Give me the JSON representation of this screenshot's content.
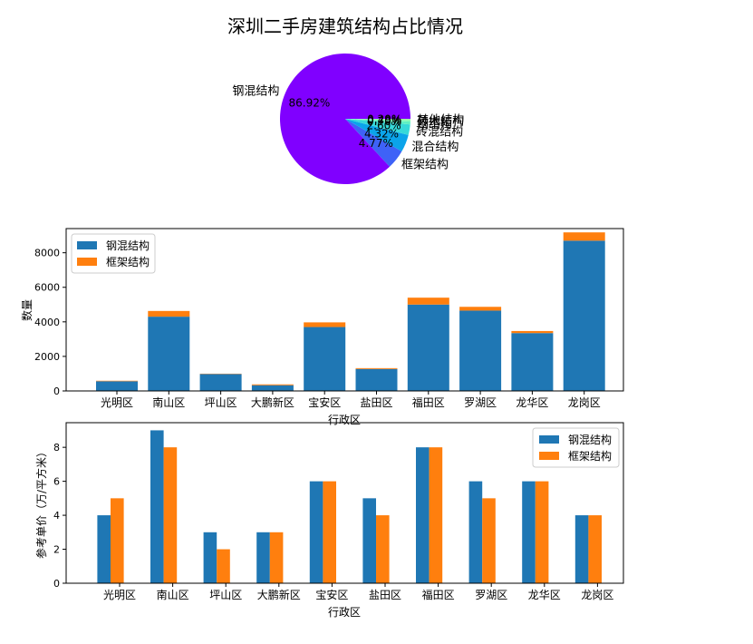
{
  "chart_data": [
    {
      "type": "pie",
      "title": "深圳二手房建筑结构占比情况",
      "labels": [
        "钢混结构",
        "框架结构",
        "混合结构",
        "砖混结构",
        "钢结构",
        "砖木结构",
        "其他结构"
      ],
      "values": [
        86.92,
        4.77,
        4.32,
        2.6,
        0.7,
        0.4,
        0.29
      ],
      "pct_labels": [
        "86.92%",
        "4.77%",
        "4.32%",
        "2.60%",
        "0.70%",
        "0.40%",
        "0.29%"
      ],
      "colors": [
        "#8000ff",
        "#3e62f7",
        "#0ba4ea",
        "#36d9d9",
        "#5ef0c4",
        "#80fbb5",
        "#a2fe9e"
      ]
    },
    {
      "type": "bar",
      "stacked": true,
      "categories": [
        "光明区",
        "南山区",
        "坪山区",
        "大鹏新区",
        "宝安区",
        "盐田区",
        "福田区",
        "罗湖区",
        "龙华区",
        "龙岗区"
      ],
      "series": [
        {
          "name": "钢混结构",
          "color": "#1f77b4",
          "values": [
            560,
            4300,
            980,
            330,
            3700,
            1270,
            5000,
            4650,
            3350,
            8700
          ]
        },
        {
          "name": "框架结构",
          "color": "#ff7f0e",
          "values": [
            30,
            330,
            20,
            50,
            270,
            50,
            400,
            220,
            120,
            480
          ]
        }
      ],
      "xlabel": "行政区",
      "ylabel": "数量",
      "ylim": [
        0,
        9400
      ],
      "yticks": [
        "0",
        "2000",
        "4000",
        "6000",
        "8000"
      ],
      "legend": "upper-left"
    },
    {
      "type": "bar",
      "grouped": true,
      "categories": [
        "光明区",
        "南山区",
        "坪山区",
        "大鹏新区",
        "宝安区",
        "盐田区",
        "福田区",
        "罗湖区",
        "龙华区",
        "龙岗区"
      ],
      "series": [
        {
          "name": "钢混结构",
          "color": "#1f77b4",
          "values": [
            4,
            9,
            3,
            3,
            6,
            5,
            8,
            6,
            6,
            4
          ]
        },
        {
          "name": "框架结构",
          "color": "#ff7f0e",
          "values": [
            5,
            8,
            2,
            3,
            6,
            4,
            8,
            5,
            6,
            4
          ]
        }
      ],
      "xlabel": "行政区",
      "ylabel": "参考单价（万/平方米）",
      "ylim": [
        0,
        9.45
      ],
      "yticks": [
        "0",
        "2",
        "4",
        "6",
        "8"
      ],
      "legend": "upper-right"
    }
  ]
}
